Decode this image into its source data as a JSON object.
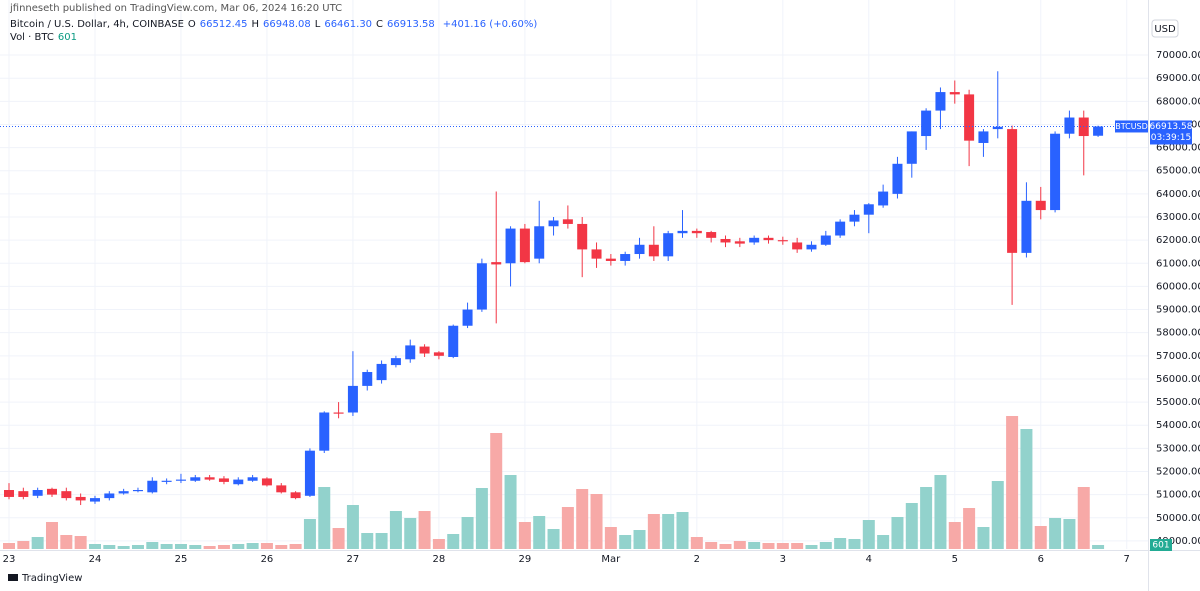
{
  "chart_data": {
    "type": "candlestick",
    "published": "jfinneseth published on TradingView.com, Mar 06, 2024 16:20 UTC",
    "title": "Bitcoin / U.S. Dollar, 4h, COINBASE",
    "ohlc_legend": [
      {
        "prefix": "O",
        "label": "66512.45"
      },
      {
        "prefix": "H",
        "label": "66948.08"
      },
      {
        "prefix": "L",
        "label": "66461.30"
      },
      {
        "prefix": "C",
        "label": "66913.58"
      }
    ],
    "change": "+401.16 (+0.60%)",
    "volume_legend": "Vol · BTC",
    "currency": "USD",
    "symbol": "BTCUSD",
    "countdown": "03:39:15",
    "branding": "TradingView",
    "categories": [
      "23",
      null,
      null,
      null,
      null,
      null,
      "24",
      null,
      null,
      null,
      null,
      null,
      "25",
      null,
      null,
      null,
      null,
      null,
      "26",
      null,
      null,
      null,
      null,
      null,
      "27",
      null,
      null,
      null,
      null,
      null,
      "28",
      null,
      null,
      null,
      null,
      null,
      "29",
      null,
      null,
      null,
      null,
      null,
      "Mar",
      null,
      null,
      null,
      null,
      null,
      "2",
      null,
      null,
      null,
      null,
      null,
      "3",
      null,
      null,
      null,
      null,
      null,
      "4",
      null,
      null,
      null,
      null,
      null,
      "5",
      null,
      null,
      null,
      null,
      null,
      "6",
      null,
      null,
      null,
      null,
      null,
      "7"
    ],
    "open": [
      51200,
      51150,
      50950,
      51250,
      51150,
      50900,
      50700,
      50850,
      51050,
      51150,
      51100,
      51550,
      51600,
      51600,
      51750,
      51700,
      51450,
      51600,
      51700,
      51400,
      51100,
      50950,
      52900,
      54550,
      54550,
      55700,
      55950,
      56600,
      56850,
      57400,
      57150,
      56950,
      58300,
      59000,
      61050,
      61000,
      62500,
      61200,
      62600,
      62900,
      62700,
      61600,
      61200,
      61100,
      61400,
      61800,
      61300,
      62300,
      62400,
      62350,
      62050,
      61950,
      61900,
      62100,
      62000,
      61900,
      61600,
      61800,
      62200,
      62800,
      63100,
      63500,
      64000,
      65300,
      66500,
      67600,
      68400,
      68300,
      66200,
      66800,
      66800,
      61450,
      63700,
      63300,
      66600,
      67300,
      66512.45,
      null,
      null
    ],
    "high": [
      51500,
      51300,
      51300,
      51300,
      51300,
      51050,
      50950,
      51150,
      51250,
      51300,
      51750,
      51700,
      51900,
      51850,
      51850,
      51800,
      51750,
      51850,
      51750,
      51500,
      51150,
      53000,
      54600,
      55000,
      57200,
      56400,
      56800,
      57000,
      57700,
      57500,
      57200,
      58350,
      59300,
      61200,
      64100,
      62600,
      62700,
      63700,
      63000,
      63500,
      63000,
      61900,
      61400,
      61500,
      62100,
      62600,
      62400,
      63300,
      62500,
      62400,
      62200,
      62100,
      62200,
      62200,
      62150,
      62100,
      61950,
      62400,
      62900,
      63300,
      63600,
      64400,
      65600,
      66700,
      67700,
      68600,
      68900,
      68500,
      66800,
      69300,
      66950,
      64500,
      64300,
      66700,
      67600,
      67600,
      66948.08,
      null,
      null
    ],
    "low": [
      50800,
      50800,
      50850,
      50900,
      50750,
      50550,
      50600,
      50750,
      51000,
      51100,
      51050,
      51450,
      51500,
      51550,
      51600,
      51450,
      51400,
      51550,
      51350,
      51050,
      50800,
      50900,
      52800,
      54300,
      54400,
      55500,
      55800,
      56500,
      56700,
      56950,
      56850,
      56900,
      58200,
      58900,
      58400,
      60000,
      61000,
      61000,
      62200,
      62500,
      60400,
      60800,
      60900,
      60900,
      61200,
      61100,
      61100,
      62100,
      62100,
      61900,
      61700,
      61700,
      61800,
      61850,
      61800,
      61450,
      61500,
      61750,
      62100,
      62600,
      62300,
      63400,
      63800,
      64700,
      65900,
      66800,
      67900,
      65200,
      65600,
      66400,
      59200,
      61250,
      62900,
      63200,
      66400,
      64800,
      66461.3,
      null,
      null
    ],
    "close": [
      50900,
      50900,
      51200,
      51000,
      50850,
      50750,
      50850,
      51050,
      51150,
      51200,
      51600,
      51600,
      51650,
      51750,
      51650,
      51550,
      51650,
      51750,
      51400,
      51100,
      50850,
      52900,
      54550,
      54500,
      55700,
      56300,
      56650,
      56900,
      57450,
      57100,
      57000,
      58300,
      59000,
      61000,
      60950,
      62500,
      61050,
      62600,
      62850,
      62700,
      61600,
      61200,
      61100,
      61400,
      61800,
      61300,
      62300,
      62400,
      62300,
      62100,
      61900,
      61850,
      62100,
      62000,
      61950,
      61600,
      61800,
      62200,
      62800,
      63100,
      63550,
      64100,
      65300,
      66700,
      67600,
      68400,
      68300,
      66300,
      66700,
      66900,
      61450,
      63700,
      63300,
      66600,
      67300,
      66500,
      66913.58,
      null,
      null
    ],
    "volume": [
      900,
      1200,
      1800,
      4050,
      2100,
      1950,
      750,
      600,
      450,
      600,
      1050,
      750,
      750,
      600,
      450,
      600,
      750,
      900,
      900,
      600,
      750,
      4500,
      9300,
      3150,
      6600,
      2400,
      2400,
      5700,
      4650,
      5700,
      1500,
      2250,
      4800,
      9150,
      17400,
      11100,
      4050,
      4950,
      3000,
      6300,
      9000,
      8250,
      3300,
      2100,
      2850,
      5250,
      5250,
      5550,
      1800,
      1050,
      750,
      1200,
      1050,
      900,
      900,
      900,
      600,
      1050,
      1650,
      1500,
      4350,
      2100,
      4800,
      6900,
      9300,
      11100,
      4050,
      6150,
      3300,
      10200,
      19950,
      18000,
      3450,
      4650,
      4500,
      9300,
      601,
      null,
      null
    ],
    "ylim": [
      48650,
      72380
    ],
    "yticks": [
      {
        "value": 49000,
        "label": "49000.00"
      },
      {
        "value": 50000,
        "label": "50000.00"
      },
      {
        "value": 51000,
        "label": "51000.00"
      },
      {
        "value": 52000,
        "label": "52000.00"
      },
      {
        "value": 53000,
        "label": "53000.00"
      },
      {
        "value": 54000,
        "label": "54000.00"
      },
      {
        "value": 55000,
        "label": "55000.00"
      },
      {
        "value": 56000,
        "label": "56000.00"
      },
      {
        "value": 57000,
        "label": "57000.00"
      },
      {
        "value": 58000,
        "label": "58000.00"
      },
      {
        "value": 59000,
        "label": "59000.00"
      },
      {
        "value": 60000,
        "label": "60000.00"
      },
      {
        "value": 61000,
        "label": "61000.00"
      },
      {
        "value": 62000,
        "label": "62000.00"
      },
      {
        "value": 63000,
        "label": "63000.00"
      },
      {
        "value": 64000,
        "label": "64000.00"
      },
      {
        "value": 65000,
        "label": "65000.00"
      },
      {
        "value": 66000,
        "label": "66000.00"
      },
      {
        "value": 67000,
        "label": "67000.00"
      },
      {
        "value": 68000,
        "label": "68000.00"
      },
      {
        "value": 69000,
        "label": "69000.00"
      },
      {
        "value": 70000,
        "label": "70000.00"
      }
    ],
    "grid": true,
    "up_color": "#2962ff",
    "down_color": "#f23645",
    "volume_up_color": "#92d2cc",
    "volume_down_color": "#f7a9a7"
  }
}
